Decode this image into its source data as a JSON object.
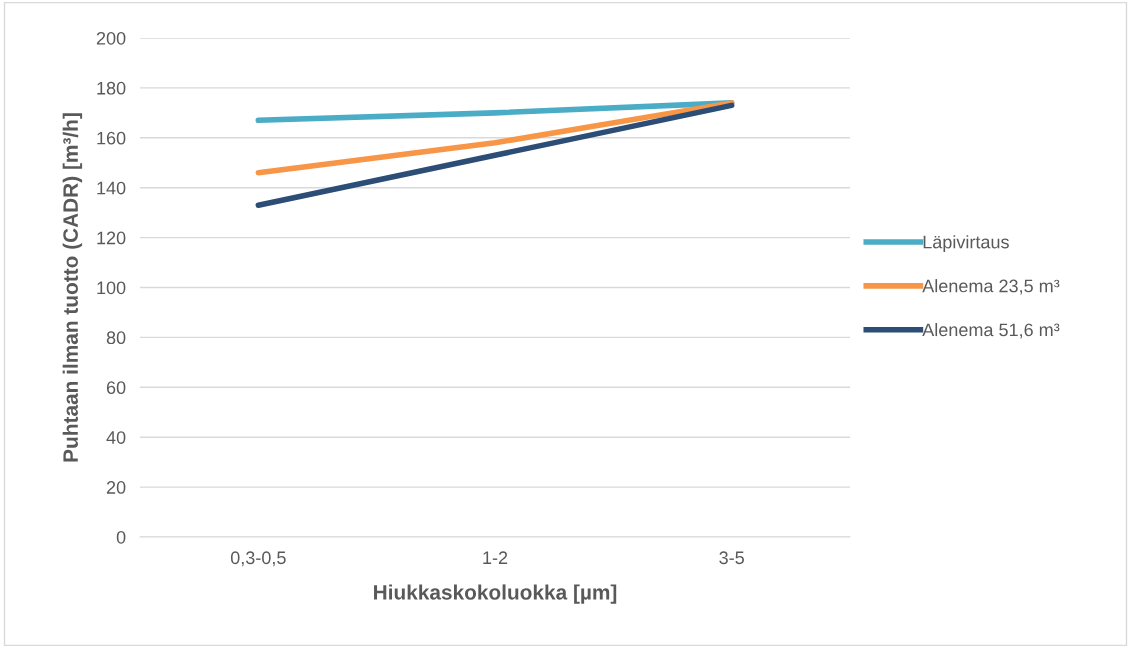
{
  "chart_data": {
    "type": "line",
    "xlabel": "Hiukkaskokoluokka [µm]",
    "ylabel": "Puhtaan ilman tuotto (CADR) [m³/h]",
    "categories": [
      "0,3-0,5",
      "1-2",
      "3-5"
    ],
    "series": [
      {
        "name": "Läpivirtaus",
        "color": "#4bacc6",
        "values": [
          167,
          170,
          174
        ]
      },
      {
        "name": "Alenema 23,5 m³",
        "color": "#f79646",
        "values": [
          146,
          158,
          174
        ]
      },
      {
        "name": "Alenema 51,6 m³",
        "color": "#2c4d75",
        "values": [
          133,
          153,
          173
        ]
      }
    ],
    "ylim": [
      0,
      200
    ],
    "yticks": [
      0,
      20,
      40,
      60,
      80,
      100,
      120,
      140,
      160,
      180,
      200
    ],
    "grid": "y",
    "legend": "right",
    "marker": "none",
    "line_style": "solid"
  }
}
